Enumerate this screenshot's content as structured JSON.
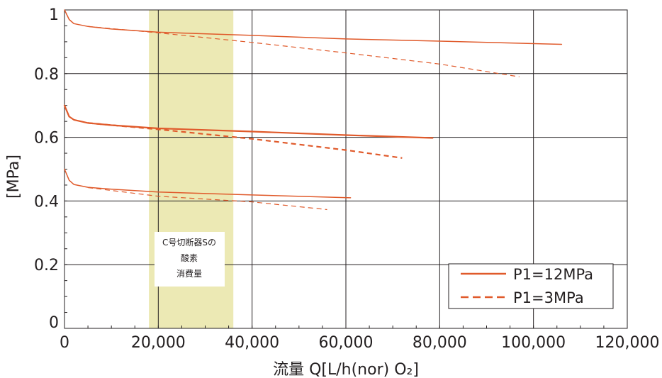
{
  "chart_data": {
    "type": "line",
    "title": "",
    "xlabel": "流量 Q[L/h(nor) O₂]",
    "ylabel": "[MPa]",
    "xlim": [
      0,
      120000
    ],
    "ylim": [
      0,
      1
    ],
    "x_ticks": [
      0,
      20000,
      40000,
      60000,
      80000,
      100000,
      120000
    ],
    "x_tick_labels": [
      "0",
      "20,000",
      "40,000",
      "60,000",
      "80,000",
      "100,000",
      "120,000"
    ],
    "y_ticks": [
      0,
      0.2,
      0.4,
      0.6,
      0.8,
      1
    ],
    "y_tick_labels": [
      "0",
      "0.2",
      "0.4",
      "0.6",
      "0.8",
      "1"
    ],
    "grid": true,
    "line_color": "#e05a2b",
    "band": {
      "x_range": [
        18000,
        36000
      ],
      "color": "#ece9b4",
      "label_lines": [
        "C号切断器Sの",
        "酸素",
        "消費量"
      ]
    },
    "legend": {
      "position": "bottom-right",
      "entries": [
        {
          "label": "P1=12MPa",
          "style": "solid"
        },
        {
          "label": "P1=3MPa",
          "style": "dashed"
        }
      ]
    },
    "series": [
      {
        "legend": "P1=12MPa",
        "style": "solid",
        "width": 1.5,
        "points": [
          [
            0,
            1.0
          ],
          [
            1000,
            0.97
          ],
          [
            2000,
            0.957
          ],
          [
            5000,
            0.948
          ],
          [
            10000,
            0.94
          ],
          [
            20000,
            0.93
          ],
          [
            40000,
            0.92
          ],
          [
            60000,
            0.909
          ],
          [
            80000,
            0.902
          ],
          [
            106000,
            0.892
          ]
        ]
      },
      {
        "legend": "P1=3MPa",
        "style": "dashed",
        "width": 1.2,
        "points": [
          [
            5000,
            0.948
          ],
          [
            20000,
            0.928
          ],
          [
            40000,
            0.898
          ],
          [
            60000,
            0.865
          ],
          [
            80000,
            0.83
          ],
          [
            97000,
            0.79
          ]
        ]
      },
      {
        "legend": "P1=12MPa",
        "style": "solid",
        "width": 2.2,
        "points": [
          [
            0,
            0.7
          ],
          [
            1000,
            0.665
          ],
          [
            2000,
            0.655
          ],
          [
            5000,
            0.645
          ],
          [
            10000,
            0.638
          ],
          [
            20000,
            0.628
          ],
          [
            40000,
            0.618
          ],
          [
            60000,
            0.607
          ],
          [
            78500,
            0.598
          ]
        ]
      },
      {
        "legend": "P1=3MPa",
        "style": "dashed",
        "width": 2.2,
        "points": [
          [
            5000,
            0.645
          ],
          [
            20000,
            0.625
          ],
          [
            40000,
            0.595
          ],
          [
            60000,
            0.56
          ],
          [
            72000,
            0.535
          ]
        ]
      },
      {
        "legend": "P1=12MPa",
        "style": "solid",
        "width": 1.5,
        "points": [
          [
            0,
            0.5
          ],
          [
            1000,
            0.465
          ],
          [
            2000,
            0.452
          ],
          [
            5000,
            0.443
          ],
          [
            10000,
            0.437
          ],
          [
            20000,
            0.428
          ],
          [
            40000,
            0.419
          ],
          [
            61000,
            0.41
          ]
        ]
      },
      {
        "legend": "P1=3MPa",
        "style": "dashed",
        "width": 1.2,
        "points": [
          [
            5000,
            0.442
          ],
          [
            20000,
            0.415
          ],
          [
            40000,
            0.397
          ],
          [
            56000,
            0.373
          ]
        ]
      }
    ]
  }
}
